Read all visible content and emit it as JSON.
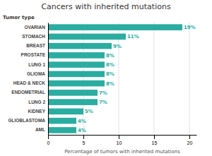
{
  "chart_data": {
    "type": "bar",
    "orientation": "horizontal",
    "title": "Cancers with inherited mutations",
    "xlabel": "Percentage of tumors with inherited mutations",
    "ylabel": "Tumor type",
    "categories": [
      "OVARIAN",
      "STOMACH",
      "BREAST",
      "PROSTATE",
      "LUNG 1",
      "GLIOMA",
      "HEAD & NECK",
      "ENDOMETRIAL",
      "LUNG 2",
      "KIDNEY",
      "GLIOBLASTOMA",
      "AML"
    ],
    "values": [
      19,
      11,
      9,
      8,
      8,
      8,
      8,
      7,
      7,
      5,
      4,
      4
    ],
    "value_labels": [
      "19%",
      "11%",
      "9%",
      "8%",
      "8%",
      "8%",
      "8%",
      "7%",
      "7%",
      "5%",
      "4%",
      "4%"
    ],
    "color": "#2aada0",
    "xlim": [
      0,
      21
    ],
    "xticks": [
      0,
      5,
      10,
      15,
      20
    ],
    "grid": true,
    "data_labels": true
  }
}
